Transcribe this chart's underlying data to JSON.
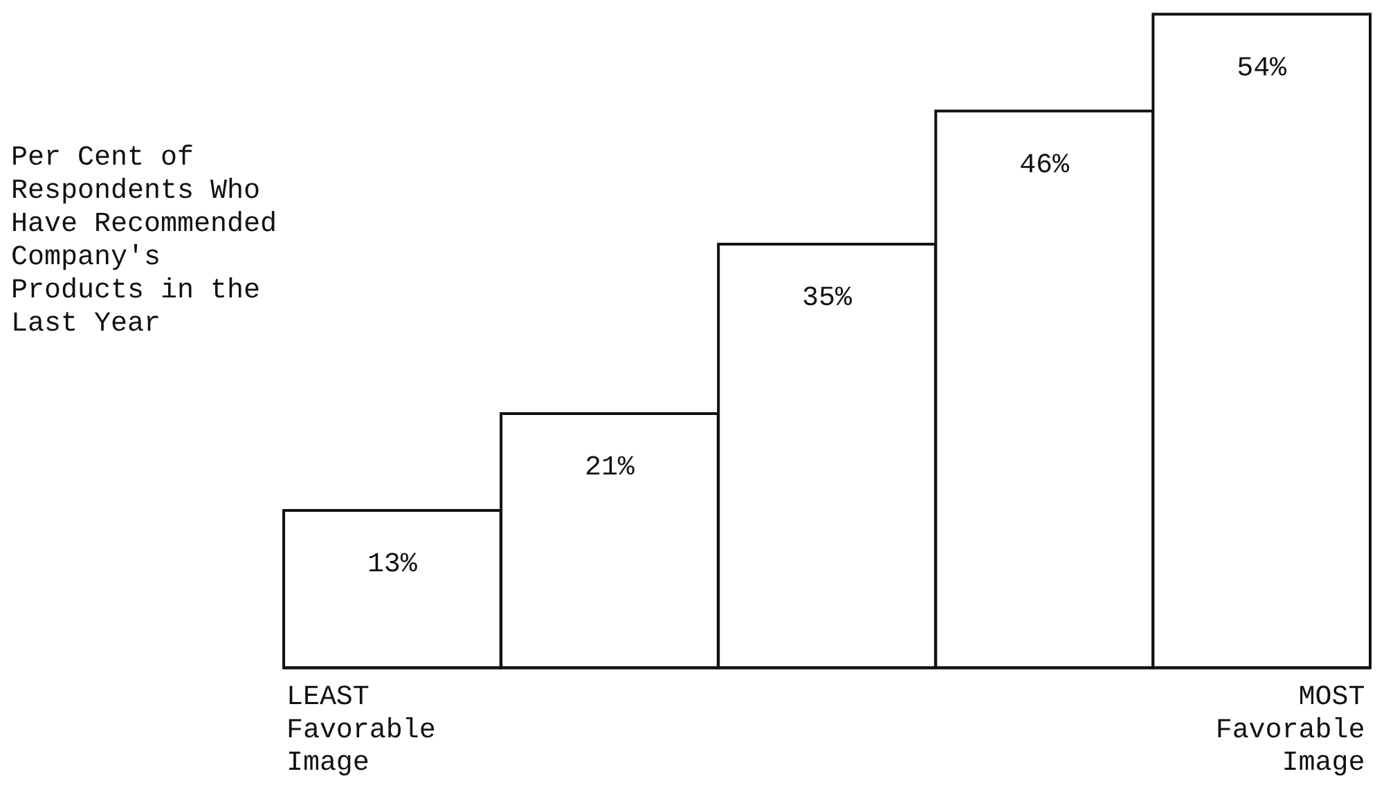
{
  "chart_data": {
    "type": "bar",
    "ylabel": "Per Cent of Respondents Who Have Recommended Company's Products in the Last Year",
    "categories": [
      "LEAST\nFavorable\nImage",
      null,
      null,
      null,
      "MOST\nFavorable\nImage"
    ],
    "values": [
      13,
      21,
      35,
      46,
      54
    ],
    "value_labels": [
      "13%",
      "21%",
      "35%",
      "46%",
      "54%"
    ],
    "color": "#ffffff"
  }
}
